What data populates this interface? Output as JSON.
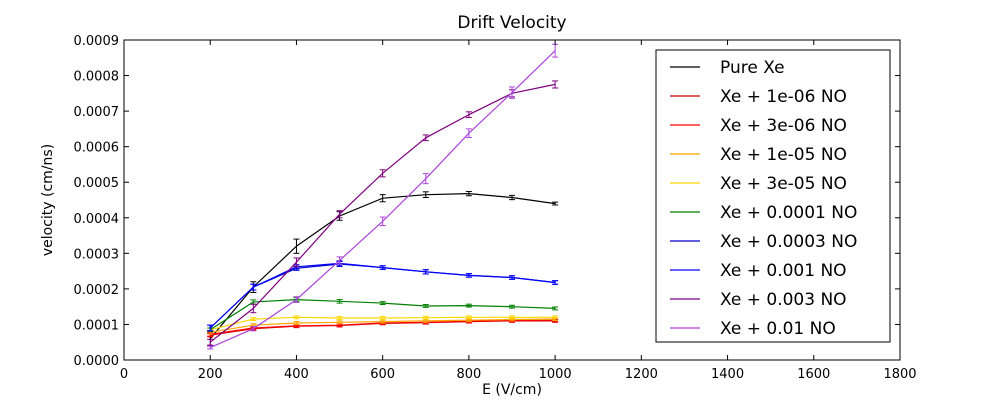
{
  "chart_data": {
    "type": "line",
    "title": "Drift Velocity",
    "xlabel": "E (V/cm)",
    "ylabel": "velocity (cm/ns)",
    "xlim": [
      0,
      1800
    ],
    "ylim": [
      0,
      0.0009
    ],
    "xticks": [
      "0",
      "200",
      "400",
      "600",
      "800",
      "1000",
      "1200",
      "1400",
      "1600",
      "1800"
    ],
    "yticks": [
      "0.0000",
      "0.0001",
      "0.0002",
      "0.0003",
      "0.0004",
      "0.0005",
      "0.0006",
      "0.0007",
      "0.0008",
      "0.0009"
    ],
    "grid": false,
    "legend_position": "top-right",
    "x": [
      200,
      300,
      400,
      500,
      600,
      700,
      800,
      900,
      1000
    ],
    "series": [
      {
        "name": "Pure Xe",
        "color": "#000000",
        "values": [
          6e-05,
          0.000205,
          0.00032,
          0.000405,
          0.000455,
          0.000465,
          0.000468,
          0.000457,
          0.00044
        ],
        "errors": [
          2e-05,
          1.5e-05,
          2e-05,
          1.2e-05,
          1e-05,
          8e-06,
          6e-06,
          6e-06,
          4e-06
        ]
      },
      {
        "name": "Xe + 1e-06 NO",
        "color": "#cc0000",
        "values": [
          7e-05,
          8.8e-05,
          9.5e-05,
          9.7e-05,
          0.000103,
          0.000105,
          0.000108,
          0.00011,
          0.00011
        ],
        "errors": [
          5e-06,
          4e-06,
          4e-06,
          4e-06,
          4e-06,
          4e-06,
          4e-06,
          4e-06,
          4e-06
        ]
      },
      {
        "name": "Xe + 3e-06 NO",
        "color": "#ff0000",
        "values": [
          7.2e-05,
          9e-05,
          9.6e-05,
          9.8e-05,
          0.000104,
          0.000106,
          0.000109,
          0.000111,
          0.000112
        ],
        "errors": [
          5e-06,
          4e-06,
          4e-06,
          4e-06,
          4e-06,
          4e-06,
          4e-06,
          4e-06,
          4e-06
        ]
      },
      {
        "name": "Xe + 1e-05 NO",
        "color": "#ffa500",
        "values": [
          7.8e-05,
          9.8e-05,
          0.000104,
          0.000106,
          0.000108,
          0.00011,
          0.000112,
          0.000114,
          0.000115
        ],
        "errors": [
          5e-06,
          4e-06,
          4e-06,
          4e-06,
          4e-06,
          4e-06,
          4e-06,
          4e-06,
          4e-06
        ]
      },
      {
        "name": "Xe + 3e-05 NO",
        "color": "#ffd700",
        "values": [
          8.5e-05,
          0.000115,
          0.00012,
          0.000118,
          0.000118,
          0.000119,
          0.00012,
          0.00012,
          0.00012
        ],
        "errors": [
          5e-06,
          4e-06,
          4e-06,
          4e-06,
          4e-06,
          4e-06,
          4e-06,
          4e-06,
          4e-06
        ]
      },
      {
        "name": "Xe + 0.0001 NO",
        "color": "#008000",
        "values": [
          8.5e-05,
          0.000163,
          0.00017,
          0.000165,
          0.00016,
          0.000152,
          0.000153,
          0.00015,
          0.000145
        ],
        "errors": [
          5e-06,
          6e-06,
          5e-06,
          5e-06,
          4e-06,
          4e-06,
          4e-06,
          4e-06,
          4e-06
        ]
      },
      {
        "name": "Xe + 0.0003 NO",
        "color": "#0000cc",
        "values": [
          9e-05,
          0.000205,
          0.000258,
          0.00027,
          0.00026,
          0.000248,
          0.000238,
          0.000232,
          0.000218
        ],
        "errors": [
          8e-06,
          8e-06,
          6e-06,
          7e-06,
          5e-06,
          6e-06,
          5e-06,
          5e-06,
          5e-06
        ]
      },
      {
        "name": "Xe + 0.001 NO",
        "color": "#0000ff",
        "values": [
          9e-05,
          0.000205,
          0.000262,
          0.000272,
          0.00026,
          0.000248,
          0.000238,
          0.000232,
          0.000218
        ],
        "errors": [
          8e-06,
          8e-06,
          6e-06,
          7e-06,
          5e-06,
          6e-06,
          5e-06,
          5e-06,
          5e-06
        ]
      },
      {
        "name": "Xe + 0.003 NO",
        "color": "#800080",
        "values": [
          5e-05,
          0.000145,
          0.000275,
          0.00041,
          0.000525,
          0.000625,
          0.00069,
          0.00075,
          0.000775
        ],
        "errors": [
          8e-06,
          1.2e-05,
          1.2e-05,
          1e-05,
          1e-05,
          8e-06,
          8e-06,
          1e-05,
          1e-05
        ]
      },
      {
        "name": "Xe + 0.01 NO",
        "color": "#aa44dd",
        "values": [
          3.5e-05,
          8.8e-05,
          0.00017,
          0.00028,
          0.00039,
          0.00051,
          0.000638,
          0.000752,
          0.00087
        ],
        "errors": [
          4e-06,
          6e-06,
          8e-06,
          1e-05,
          1.2e-05,
          1.4e-05,
          1.2e-05,
          1.6e-05,
          1.8e-05
        ]
      }
    ]
  }
}
